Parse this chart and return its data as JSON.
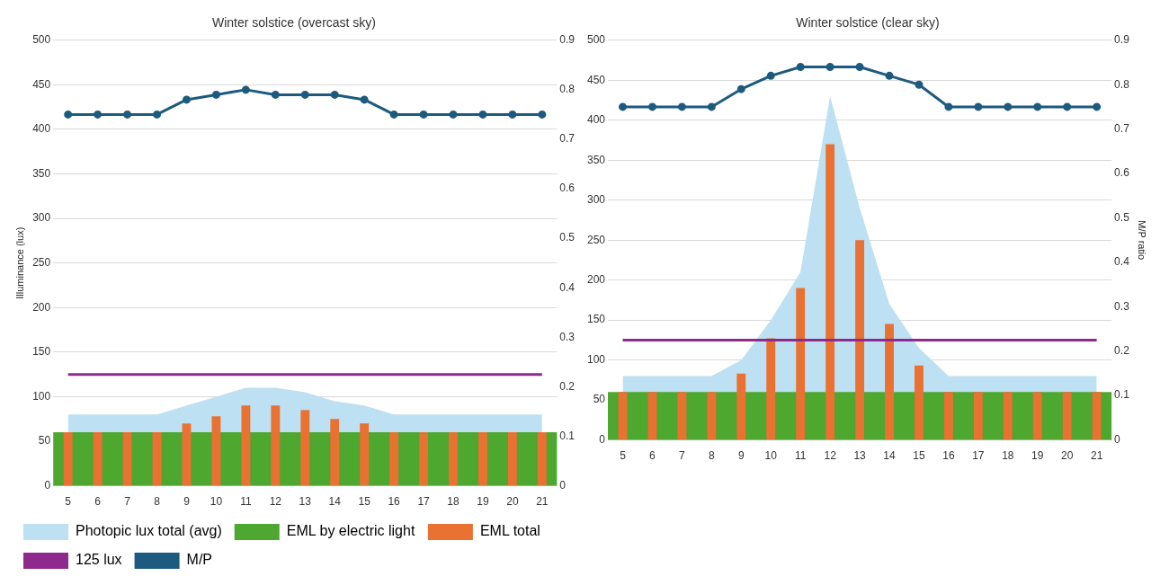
{
  "chart_data": [
    {
      "type": "bar",
      "title": "Winter solstice (overcast sky)",
      "ylabel": "Illuminance (lux)",
      "categories": [
        "5",
        "6",
        "7",
        "8",
        "9",
        "10",
        "11",
        "12",
        "13",
        "14",
        "15",
        "16",
        "17",
        "18",
        "19",
        "20",
        "21"
      ],
      "series": [
        {
          "name": "Photopic lux total (avg)",
          "type": "area",
          "color": "#bde0f2",
          "values": [
            80,
            80,
            80,
            80,
            90,
            100,
            110,
            110,
            105,
            95,
            90,
            80,
            80,
            80,
            80,
            80,
            80
          ]
        },
        {
          "name": "EML total",
          "color": "#e97132",
          "values": [
            60,
            60,
            60,
            60,
            70,
            78,
            90,
            90,
            85,
            75,
            70,
            60,
            60,
            60,
            60,
            60,
            60
          ]
        },
        {
          "name": "M/P",
          "type": "line",
          "axis": "y2",
          "color": "#1d5b7e",
          "marker": "circle",
          "values": [
            0.75,
            0.75,
            0.75,
            0.75,
            0.78,
            0.79,
            0.8,
            0.79,
            0.79,
            0.79,
            0.78,
            0.75,
            0.75,
            0.75,
            0.75,
            0.75,
            0.75
          ]
        }
      ],
      "bands": [
        {
          "axis": "y",
          "from": 0,
          "to": 60,
          "label": "EML by electric light",
          "color": "#4ea72e"
        }
      ],
      "ref_lines": [
        {
          "axis": "y",
          "value": 125,
          "label": "125 lux",
          "color": "#8e2a8e"
        }
      ],
      "ylim": [
        0,
        500
      ],
      "yticks": [
        0,
        50,
        100,
        150,
        200,
        250,
        300,
        350,
        400,
        450,
        500
      ],
      "y2lim": [
        0,
        0.9
      ],
      "y2ticks": [
        0,
        0.1,
        0.2,
        0.3,
        0.4,
        0.5,
        0.6,
        0.7,
        0.8,
        0.9
      ],
      "grid": "y",
      "legend": "bottom"
    },
    {
      "type": "bar",
      "title": "Winter solstice (clear sky)",
      "y2label": "M/P ratio",
      "categories": [
        "5",
        "6",
        "7",
        "8",
        "9",
        "10",
        "11",
        "12",
        "13",
        "14",
        "15",
        "16",
        "17",
        "18",
        "19",
        "20",
        "21"
      ],
      "series": [
        {
          "type": "area",
          "color": "#bde0f2",
          "values": [
            80,
            80,
            80,
            80,
            100,
            150,
            210,
            430,
            290,
            170,
            115,
            80,
            80,
            80,
            80,
            80,
            80
          ]
        },
        {
          "color": "#e97132",
          "values": [
            60,
            60,
            60,
            60,
            83,
            127,
            190,
            370,
            250,
            145,
            93,
            60,
            60,
            60,
            60,
            60,
            60
          ]
        },
        {
          "type": "line",
          "axis": "y2",
          "color": "#1d5b7e",
          "marker": "circle",
          "values": [
            0.75,
            0.75,
            0.75,
            0.75,
            0.79,
            0.82,
            0.84,
            0.84,
            0.84,
            0.82,
            0.8,
            0.75,
            0.75,
            0.75,
            0.75,
            0.75,
            0.75
          ]
        }
      ],
      "bands": [
        {
          "axis": "y",
          "from": 0,
          "to": 60,
          "color": "#4ea72e"
        }
      ],
      "ref_lines": [
        {
          "axis": "y",
          "value": 125,
          "color": "#8e2a8e"
        }
      ],
      "ylim": [
        0,
        500
      ],
      "yticks": [
        0,
        50,
        100,
        150,
        200,
        250,
        300,
        350,
        400,
        450,
        500
      ],
      "y2lim": [
        0,
        0.9
      ],
      "y2ticks": [
        0,
        0.1,
        0.2,
        0.3,
        0.4,
        0.5,
        0.6,
        0.7,
        0.8,
        0.9
      ],
      "grid": "y"
    }
  ]
}
